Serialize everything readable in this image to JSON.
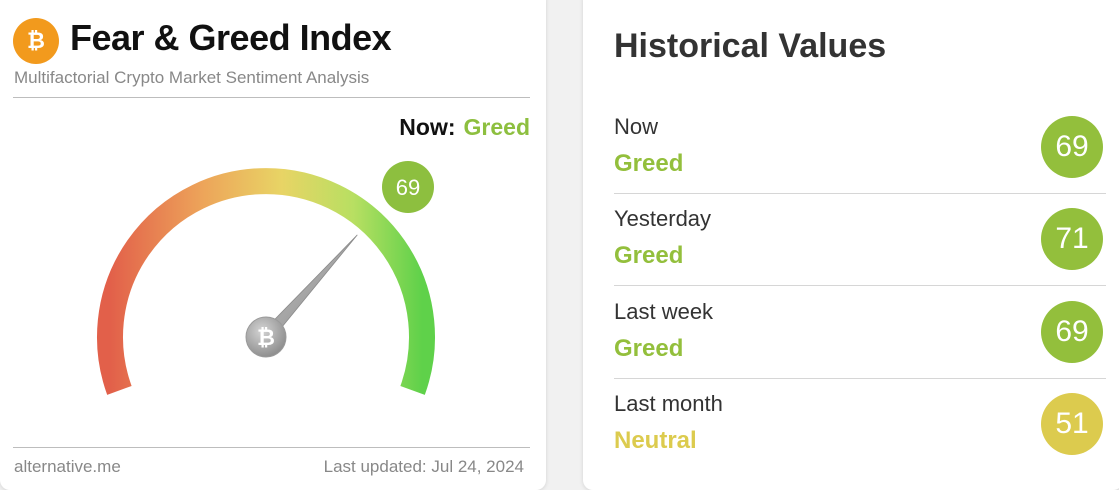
{
  "header": {
    "title": "Fear & Greed Index",
    "subtitle": "Multifactorial Crypto Market Sentiment Analysis"
  },
  "gauge": {
    "now_label": "Now:",
    "classification": "Greed",
    "value": 69,
    "min": 0,
    "max": 100
  },
  "footer": {
    "source": "alternative.me",
    "last_updated": "Last updated: Jul 24, 2024"
  },
  "historical": {
    "title": "Historical Values",
    "rows": [
      {
        "period": "Now",
        "classification": "Greed",
        "value": "69",
        "color": "#93bf3c"
      },
      {
        "period": "Yesterday",
        "classification": "Greed",
        "value": "71",
        "color": "#93bf3c"
      },
      {
        "period": "Last week",
        "classification": "Greed",
        "value": "69",
        "color": "#93bf3c"
      },
      {
        "period": "Last month",
        "classification": "Neutral",
        "value": "51",
        "color": "#dccb4e"
      }
    ]
  },
  "colors": {
    "greed": "#8dbf3f",
    "neutral": "#dccb4e",
    "bitcoin": "#f29a1d",
    "extreme_fear": "#e2604a",
    "extreme_greed": "#5fd14a"
  },
  "icons": {
    "logo": "bitcoin-icon",
    "needle_hub": "bitcoin-icon"
  }
}
